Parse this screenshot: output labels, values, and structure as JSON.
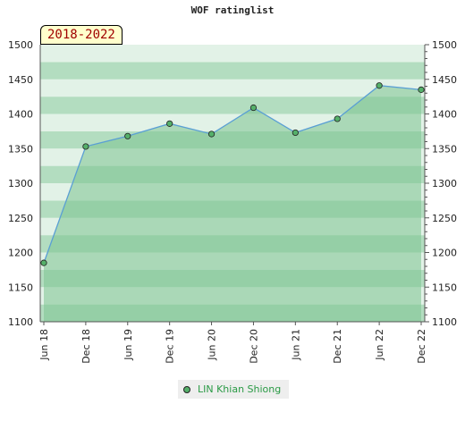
{
  "title": "WOF ratinglist",
  "range_badge": "2018-2022",
  "colors": {
    "line": "#5a9fd4",
    "fill": "#7cc38f",
    "marker": "#55b06a",
    "band_dark": "#b3ddc0",
    "band_light": "#e2f2e7",
    "legend_text": "#2a9a45"
  },
  "chart_data": {
    "type": "area",
    "title": "WOF ratinglist",
    "x": [
      "Jun 18",
      "Dec 18",
      "Jun 19",
      "Dec 19",
      "Jun 20",
      "Dec 20",
      "Jun 21",
      "Dec 21",
      "Jun 22",
      "Dec 22"
    ],
    "series": [
      {
        "name": "LIN Khian Shiong",
        "values": [
          1185,
          1353,
          1368,
          1386,
          1371,
          1409,
          1373,
          1393,
          1441,
          1435
        ]
      }
    ],
    "ylim": [
      1100,
      1500
    ],
    "yticks": [
      1100,
      1150,
      1200,
      1250,
      1300,
      1350,
      1400,
      1450,
      1500
    ],
    "y_axes": "left-and-right",
    "legend_position": "bottom-center"
  }
}
